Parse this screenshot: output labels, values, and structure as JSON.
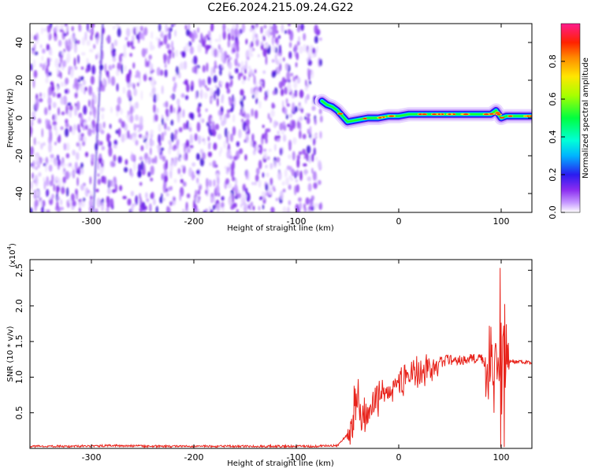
{
  "title": "C2E6.2024.215.09.24.G22",
  "chart_data": [
    {
      "type": "heatmap",
      "xlabel": "Height of straight line (km)",
      "ylabel": "Frequency (Hz)",
      "xlim": [
        -360,
        130
      ],
      "ylim": [
        -50,
        50
      ],
      "xticks": [
        -300,
        -200,
        -100,
        0,
        100
      ],
      "yticks": [
        -40,
        -20,
        0,
        20,
        40
      ],
      "noise_region_x": [
        -360,
        -75
      ],
      "signal_ridge": {
        "x": [
          -75,
          -70,
          -65,
          -60,
          -55,
          -50,
          -40,
          -30,
          -20,
          -10,
          0,
          10,
          20,
          40,
          60,
          80,
          90,
          95,
          100,
          105,
          110,
          120,
          130
        ],
        "frequency": [
          9,
          7,
          6,
          4,
          1,
          -2,
          -1,
          0,
          0,
          1,
          1,
          2,
          2,
          2,
          2,
          2,
          2,
          4,
          0,
          1,
          1,
          1,
          1
        ]
      },
      "colorbar": {
        "label": "Normalized spectral amplitude",
        "range": [
          0.0,
          1.0
        ],
        "ticks": [
          0.0,
          0.2,
          0.4,
          0.6,
          0.8
        ]
      }
    },
    {
      "type": "line",
      "xlabel": "Height of straight line (km)",
      "ylabel": "SNR (10 * v/v)",
      "y_multiplier_label": "(x10",
      "y_multiplier_exponent": "4",
      "xlim": [
        -360,
        130
      ],
      "ylim": [
        0,
        2.65
      ],
      "xticks": [
        -300,
        -200,
        -100,
        0,
        100
      ],
      "yticks": [
        0.5,
        1.0,
        1.5,
        2.0,
        2.5
      ],
      "color": "#e8231b",
      "series": [
        {
          "x": [
            -360,
            -320,
            -280,
            -240,
            -200,
            -160,
            -120,
            -80,
            -60,
            -50,
            -45,
            -42,
            -40,
            -38,
            -35,
            -30,
            -25,
            -20,
            -15,
            -10,
            -5,
            0,
            10,
            20,
            30,
            40,
            50,
            60,
            70,
            80,
            85,
            90,
            95,
            98,
            100,
            102,
            105,
            110,
            120,
            130
          ],
          "values": [
            0.03,
            0.03,
            0.04,
            0.03,
            0.03,
            0.03,
            0.03,
            0.03,
            0.04,
            0.2,
            0.35,
            0.55,
            0.9,
            0.4,
            0.5,
            0.45,
            0.6,
            0.7,
            0.75,
            0.8,
            0.85,
            0.95,
            1.0,
            1.05,
            1.15,
            1.2,
            1.25,
            1.25,
            1.25,
            1.28,
            1.2,
            1.3,
            1.35,
            1.1,
            1.3,
            1.25,
            1.2,
            1.22,
            1.22,
            1.2
          ]
        }
      ]
    }
  ]
}
